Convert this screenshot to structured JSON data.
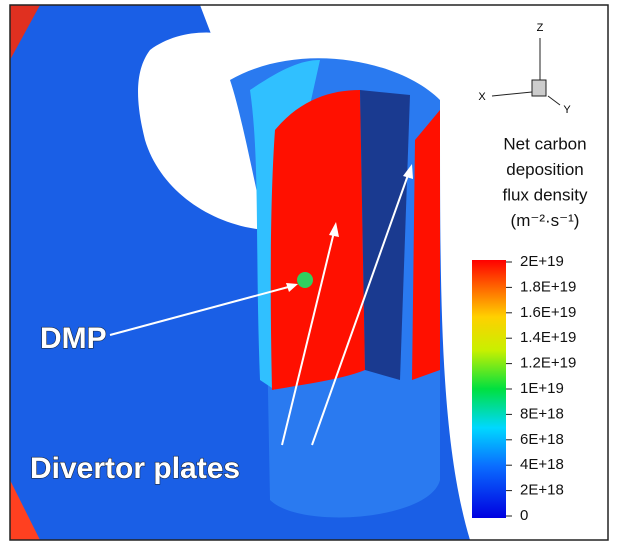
{
  "triad": {
    "z": "Z",
    "x": "X",
    "y": "Y"
  },
  "colorbar": {
    "title": [
      "Net carbon",
      "deposition",
      "flux density",
      "(m⁻²·s⁻¹)"
    ],
    "ticks": [
      {
        "value": 2e+19,
        "label": "2E+19"
      },
      {
        "value": 1.8e+19,
        "label": "1.8E+19"
      },
      {
        "value": 1.6e+19,
        "label": "1.6E+19"
      },
      {
        "value": 1.4e+19,
        "label": "1.4E+19"
      },
      {
        "value": 1.2e+19,
        "label": "1.2E+19"
      },
      {
        "value": 1e+19,
        "label": "1E+19"
      },
      {
        "value": 8e+18,
        "label": "8E+18"
      },
      {
        "value": 6e+18,
        "label": "6E+18"
      },
      {
        "value": 4e+18,
        "label": "4E+18"
      },
      {
        "value": 2e+18,
        "label": "2E+18"
      },
      0
    ]
  },
  "annotations": {
    "dmp": "DMP",
    "divertor": "Divertor plates"
  }
}
